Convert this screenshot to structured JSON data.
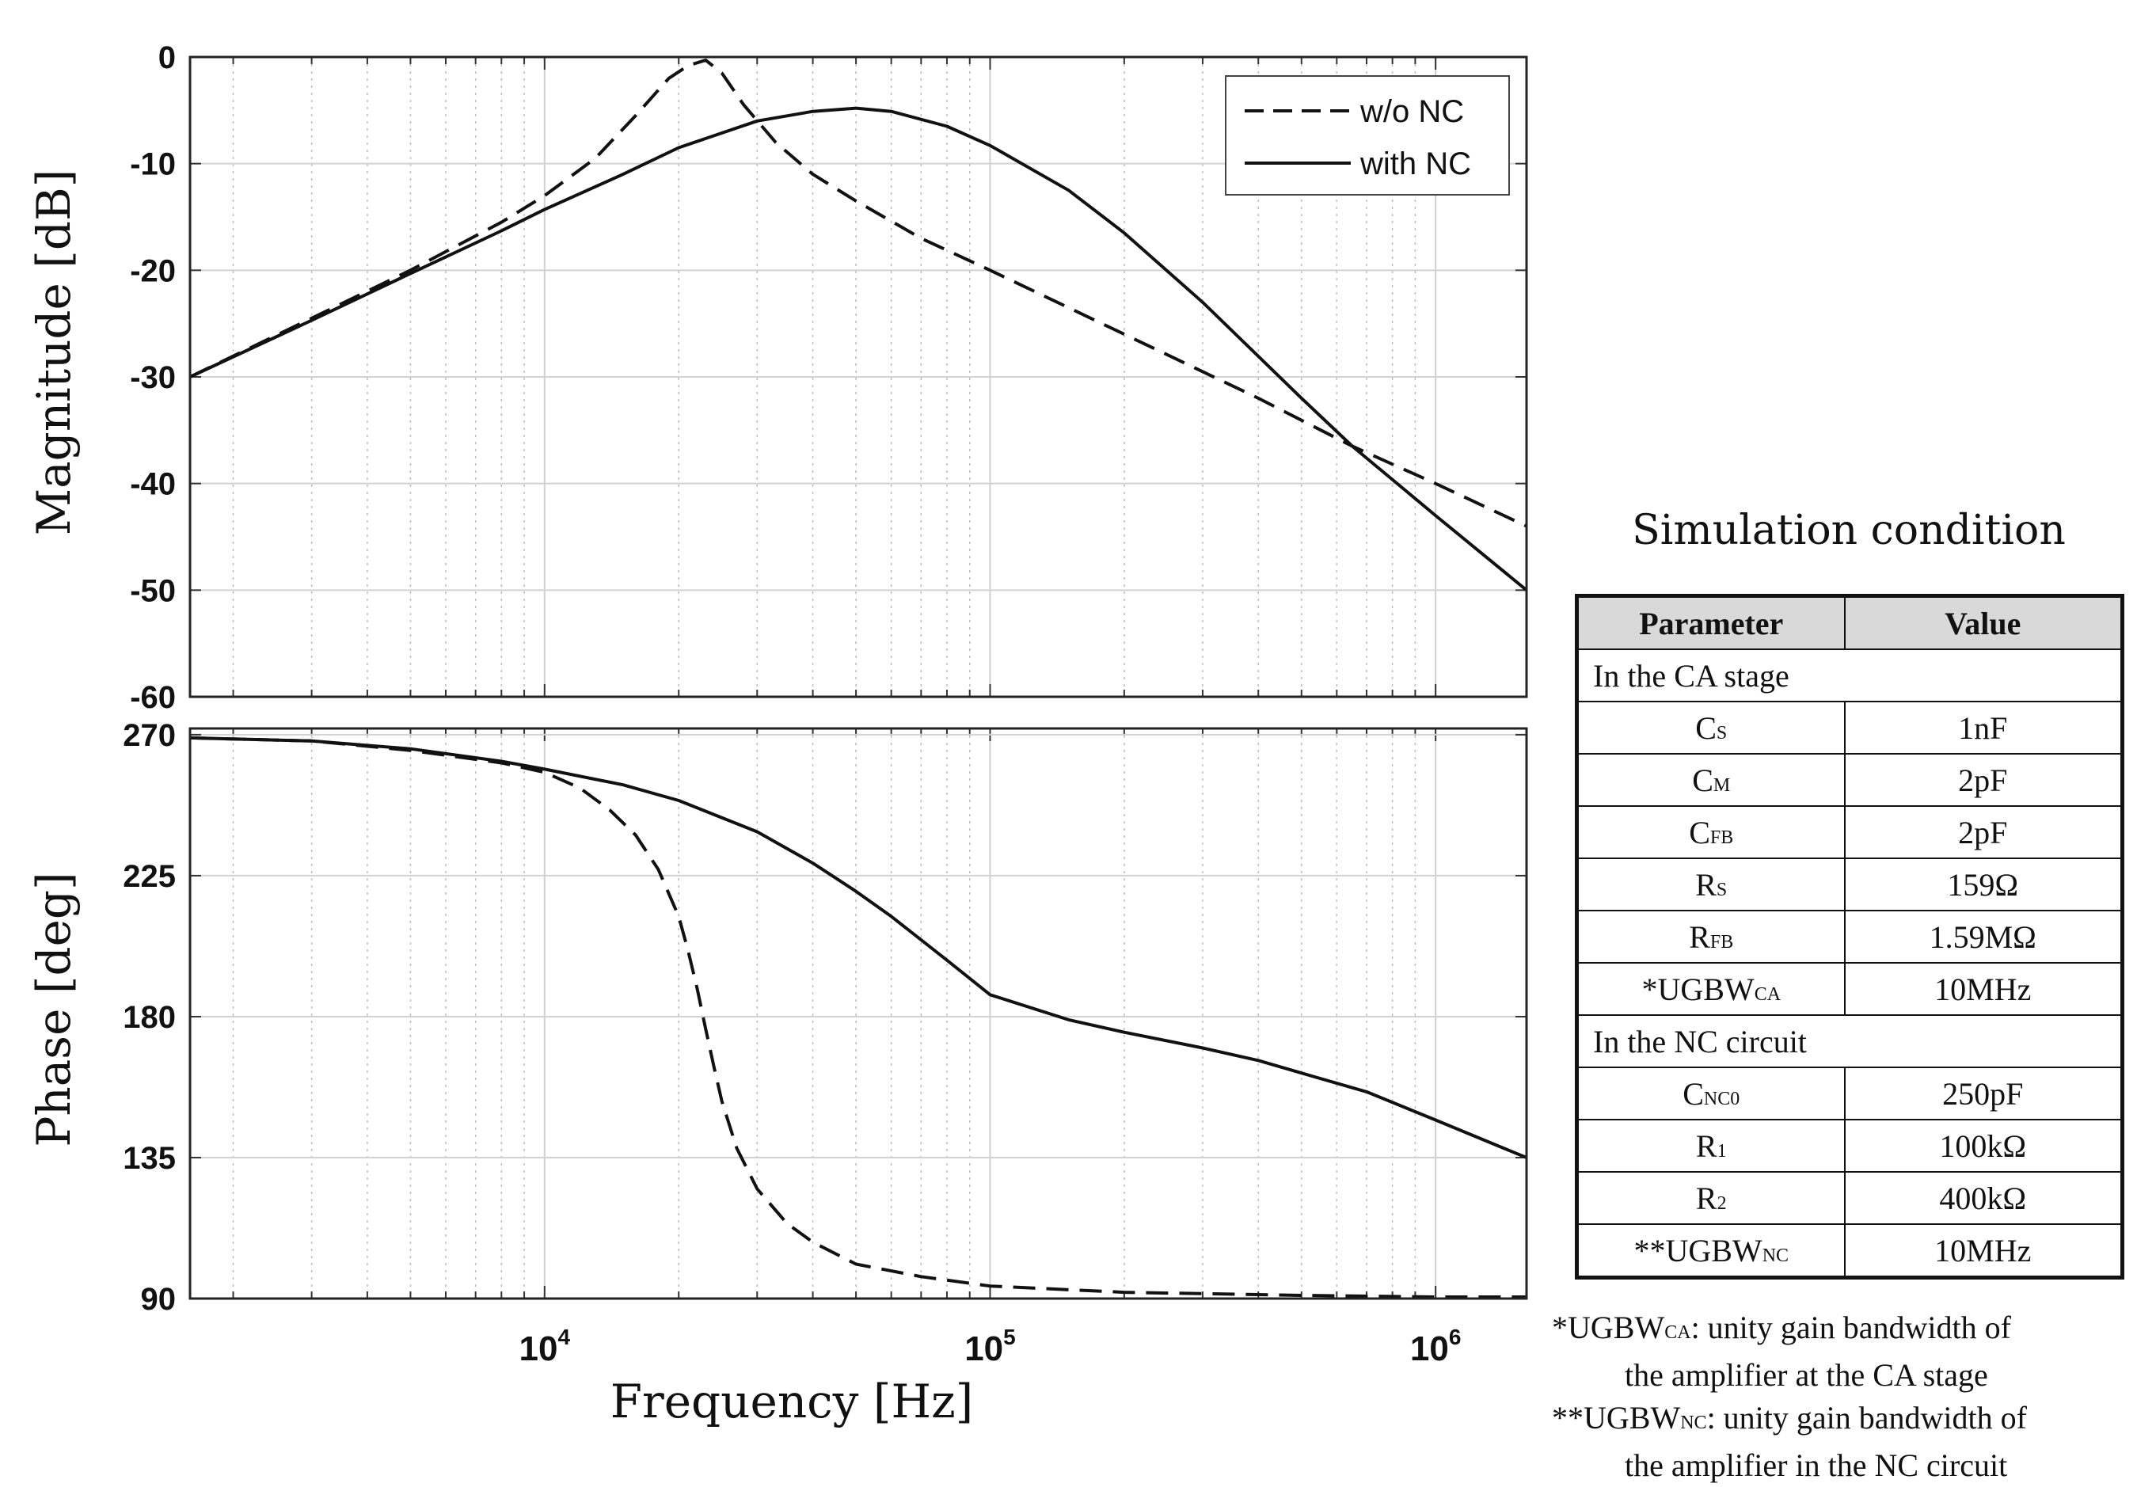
{
  "chart_data": [
    {
      "type": "line",
      "title": "",
      "xlabel": "",
      "ylabel": "Magnitude [dB]",
      "xscale": "log",
      "xlim": [
        1600,
        1600000
      ],
      "ylim": [
        -60,
        0
      ],
      "yticks": [
        "0",
        "-10",
        "-20",
        "-30",
        "-40",
        "-50",
        "-60"
      ],
      "ytick_values": [
        0,
        -10,
        -20,
        -30,
        -40,
        -50,
        -60
      ],
      "legend": {
        "position": "top-right",
        "entries": [
          "w/o NC",
          "with NC"
        ]
      },
      "series": [
        {
          "name": "w/o NC",
          "style": "dashed",
          "x": [
            1600,
            3000,
            5000,
            8000,
            10000,
            13000,
            16000,
            19000,
            21000,
            23000,
            25000,
            28000,
            33000,
            40000,
            50000,
            70000,
            100000,
            200000,
            400000,
            650000,
            1000000,
            1600000
          ],
          "y": [
            -30,
            -24.5,
            -20,
            -15.5,
            -13,
            -9.5,
            -5.5,
            -2,
            -0.8,
            -0.3,
            -1.5,
            -4.5,
            -8,
            -11,
            -13.5,
            -17,
            -20,
            -26,
            -32,
            -36.5,
            -40,
            -44
          ]
        },
        {
          "name": "with NC",
          "style": "solid",
          "x": [
            1600,
            3000,
            5000,
            8000,
            10000,
            15000,
            20000,
            30000,
            40000,
            50000,
            60000,
            80000,
            100000,
            150000,
            200000,
            300000,
            500000,
            650000,
            1000000,
            1600000
          ],
          "y": [
            -30,
            -24.7,
            -20.3,
            -16.3,
            -14.3,
            -11,
            -8.5,
            -6,
            -5.1,
            -4.8,
            -5.1,
            -6.5,
            -8.3,
            -12.5,
            -16.5,
            -23,
            -32,
            -36.5,
            -43,
            -50
          ]
        }
      ]
    },
    {
      "type": "line",
      "title": "",
      "xlabel": "Frequency [Hz]",
      "ylabel": "Phase [deg]",
      "xscale": "log",
      "xlim": [
        1600,
        1600000
      ],
      "ylim": [
        90,
        272
      ],
      "yticks": [
        "270",
        "225",
        "180",
        "135",
        "90"
      ],
      "ytick_values": [
        270,
        225,
        180,
        135,
        90
      ],
      "xticks": [
        {
          "value": 10000,
          "base": "10",
          "exp": "4"
        },
        {
          "value": 100000,
          "base": "10",
          "exp": "5"
        },
        {
          "value": 1000000,
          "base": "10",
          "exp": "6"
        }
      ],
      "series": [
        {
          "name": "w/o NC",
          "style": "dashed",
          "x": [
            1600,
            3000,
            5000,
            8000,
            10000,
            12000,
            14000,
            16000,
            18000,
            20000,
            21000,
            22000,
            23000,
            24000,
            25000,
            27000,
            30000,
            35000,
            40000,
            50000,
            70000,
            100000,
            200000,
            500000,
            1000000,
            1600000
          ],
          "y": [
            269,
            268,
            265,
            261,
            258,
            253,
            246,
            238,
            227,
            212,
            201,
            189,
            176,
            164,
            153,
            138,
            125,
            114,
            108,
            101,
            97,
            94,
            92,
            91,
            90.5,
            90.5
          ]
        },
        {
          "name": "with NC",
          "style": "solid",
          "x": [
            1600,
            3000,
            5000,
            8000,
            10000,
            15000,
            20000,
            30000,
            40000,
            50000,
            60000,
            80000,
            100000,
            150000,
            200000,
            300000,
            400000,
            500000,
            700000,
            1000000,
            1600000
          ],
          "y": [
            269,
            268,
            265.5,
            261.5,
            259,
            254,
            249,
            239,
            229,
            220,
            212,
            198,
            187,
            179,
            175,
            170,
            166,
            162,
            156,
            147,
            135
          ]
        }
      ]
    }
  ],
  "sim_title": "Simulation condition",
  "table": {
    "headers": [
      "Parameter",
      "Value"
    ],
    "section1": "In the CA stage",
    "section2": "In the NC circuit",
    "rows1": [
      {
        "base": "C",
        "sub": "S",
        "value": "1nF"
      },
      {
        "base": "C",
        "sub": "M",
        "value": "2pF"
      },
      {
        "base": "C",
        "sub": "FB",
        "value": "2pF"
      },
      {
        "base": "R",
        "sub": "S",
        "value": "159Ω"
      },
      {
        "base": "R",
        "sub": "FB",
        "value": "1.59MΩ"
      },
      {
        "base": "*UGBW",
        "sub": "CA",
        "value": "10MHz"
      }
    ],
    "rows2": [
      {
        "base": "C",
        "sub": "NC0",
        "value": "250pF"
      },
      {
        "base": "R",
        "sub": "1",
        "value": "100kΩ"
      },
      {
        "base": "R",
        "sub": "2",
        "value": "400kΩ"
      },
      {
        "base": "**UGBW",
        "sub": "NC",
        "value": "10MHz"
      }
    ]
  },
  "footnotes": {
    "fn1_prefix": "*UGBW",
    "fn1_sub": "CA",
    "fn1_rest": ": unity gain bandwidth of",
    "fn1_line2": "the amplifier at the CA stage",
    "fn2_prefix": "**UGBW",
    "fn2_sub": "NC",
    "fn2_rest": ": unity gain bandwidth of",
    "fn2_line2": "the amplifier in the NC circuit"
  }
}
